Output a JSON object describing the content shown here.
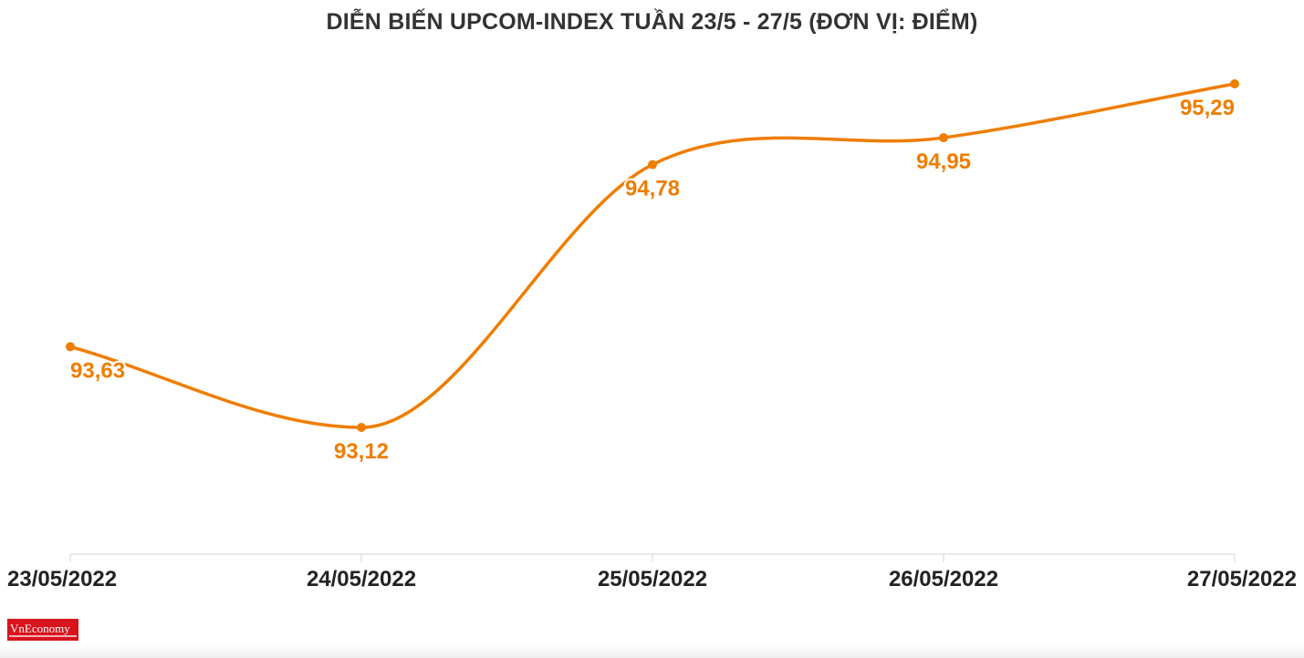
{
  "title": "DIỄN BIẾN UPCOM-INDEX TUẦN 23/5 - 27/5 (ĐƠN VỊ: ĐIỂM)",
  "logo_text": "VnEconomy",
  "colors": {
    "line": "#ef7d00",
    "label": "#ef7d00",
    "axis": "#e3e3e3",
    "tick_text": "#222222"
  },
  "chart_data": {
    "type": "line",
    "title": "DIỄN BIẾN UPCOM-INDEX TUẦN 23/5 - 27/5 (ĐƠN VỊ: ĐIỂM)",
    "categories": [
      "23/05/2022",
      "24/05/2022",
      "25/05/2022",
      "26/05/2022",
      "27/05/2022"
    ],
    "series": [
      {
        "values": [
          93.63,
          93.12,
          94.78,
          94.95,
          95.29
        ],
        "labels": [
          "93,63",
          "93,12",
          "94,78",
          "94,95",
          "95,29"
        ]
      }
    ],
    "xlabel": "",
    "ylabel": "",
    "ylim": [
      92.32,
      95.29
    ],
    "grid": false,
    "smooth": true
  }
}
